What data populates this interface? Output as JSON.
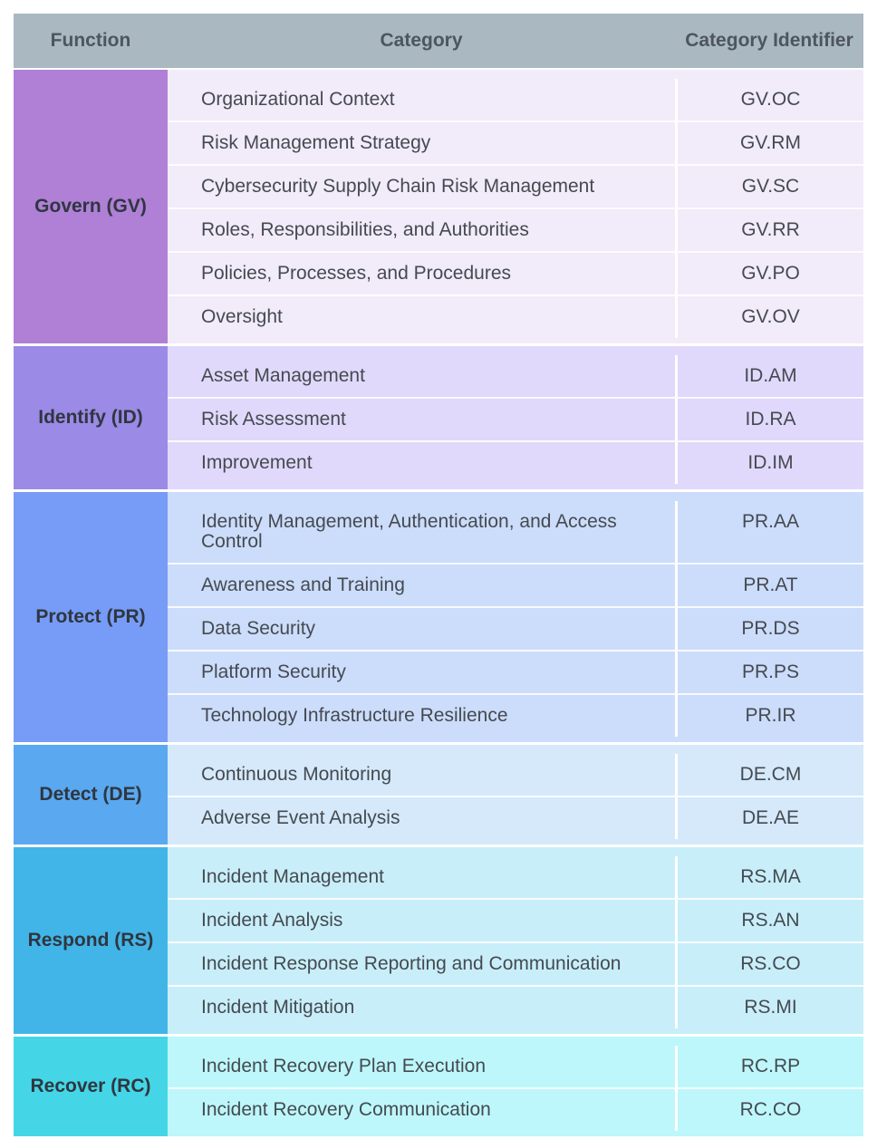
{
  "header": {
    "columns": [
      "Function",
      "Category",
      "Category Identifier"
    ]
  },
  "groups": [
    {
      "function": "Govern (GV)",
      "rows": [
        [
          "Organizational Context",
          "GV.OC"
        ],
        [
          "Risk Management Strategy",
          "GV.RM"
        ],
        [
          "Cybersecurity Supply Chain Risk Management",
          "GV.SC"
        ],
        [
          "Roles, Responsibilities, and Authorities",
          "GV.RR"
        ],
        [
          "Policies, Processes, and Procedures",
          "GV.PO"
        ],
        [
          "Oversight",
          "GV.OV"
        ]
      ]
    },
    {
      "function": "Identify (ID)",
      "rows": [
        [
          "Asset Management",
          "ID.AM"
        ],
        [
          "Risk Assessment",
          "ID.RA"
        ],
        [
          "Improvement",
          "ID.IM"
        ]
      ]
    },
    {
      "function": "Protect (PR)",
      "rows": [
        [
          "Identity Management, Authentication, and Access Control",
          "PR.AA"
        ],
        [
          "Awareness and Training",
          "PR.AT"
        ],
        [
          "Data Security",
          "PR.DS"
        ],
        [
          "Platform Security",
          "PR.PS"
        ],
        [
          "Technology Infrastructure Resilience",
          "PR.IR"
        ]
      ]
    },
    {
      "function": "Detect (DE)",
      "rows": [
        [
          "Continuous Monitoring",
          "DE.CM"
        ],
        [
          "Adverse Event Analysis",
          "DE.AE"
        ]
      ]
    },
    {
      "function": "Respond (RS)",
      "rows": [
        [
          "Incident Management",
          "RS.MA"
        ],
        [
          "Incident Analysis",
          "RS.AN"
        ],
        [
          "Incident Response Reporting and Communication",
          "RS.CO"
        ],
        [
          "Incident Mitigation",
          "RS.MI"
        ]
      ]
    },
    {
      "function": "Recover (RC)",
      "rows": [
        [
          "Incident Recovery Plan Execution",
          "RC.RP"
        ],
        [
          "Incident Recovery Communication",
          "RC.CO"
        ]
      ]
    }
  ]
}
